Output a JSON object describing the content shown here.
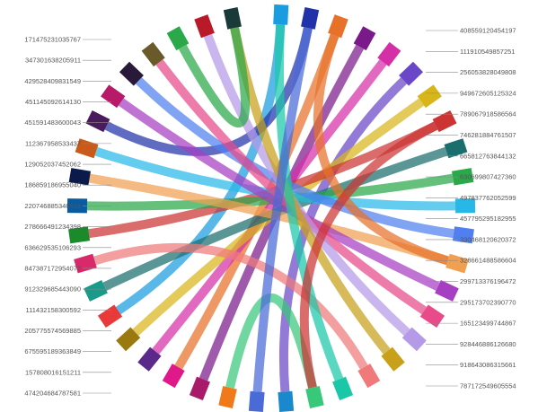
{
  "chart_data": {
    "type": "chord",
    "title": "",
    "left_labels": [
      "171475231035767",
      "347301638205911",
      "429528409831549",
      "451145092614130",
      "451591483600043",
      "112367958533437⁠⁠⁠",
      "129052037452062⁠⁠⁠",
      "186859186955040",
      "220746885346628⁠⁠⁠",
      "278666491234398⁠⁠⁠",
      "636629535106293⁠⁠⁠",
      "847387172954072⁠⁠⁠",
      "912329685443090⁠⁠⁠",
      "111432158300592⁠⁠⁠",
      "205775574569885⁠⁠⁠",
      "675595189363849⁠⁠⁠",
      "157808016151211⁠⁠⁠",
      "474204684787581⁠⁠⁠"
    ],
    "right_labels": [
      "408559120454197⁠⁠⁠",
      "111910549857251⁠⁠⁠",
      "256053828049808⁠⁠⁠",
      "949672605125324⁠⁠⁠",
      "789067918586564⁠⁠⁠",
      "746281884761507⁠⁠⁠",
      "665812763844132⁠⁠⁠",
      "630699807427360⁠⁠⁠",
      "497837762052599⁠⁠⁠",
      "457795295182955⁠⁠⁠",
      "330468120620372⁠⁠⁠",
      "328661488586604⁠⁠⁠",
      "299713376196472⁠⁠⁠",
      "295173702390770⁠⁠⁠",
      "165123499744867⁠⁠⁠",
      "928446886126680⁠⁠⁠",
      "918643086315661⁠⁠⁠",
      "787172549605554⁠⁠⁠"
    ],
    "nodes": [
      {
        "id": "n0",
        "color": "#1a9de0"
      },
      {
        "id": "n1",
        "color": "#2233aa"
      },
      {
        "id": "n2",
        "color": "#e8712a"
      },
      {
        "id": "n3",
        "color": "#7a1a8a"
      },
      {
        "id": "n4",
        "color": "#d52fa8"
      },
      {
        "id": "n5",
        "color": "#6a47c8"
      },
      {
        "id": "n6",
        "color": "#d8b61a"
      },
      {
        "id": "n7",
        "color": "#cc3333"
      },
      {
        "id": "n8",
        "color": "#1a6e6e"
      },
      {
        "id": "n9",
        "color": "#2aa84a"
      },
      {
        "id": "n10",
        "color": "#28b8e8"
      },
      {
        "id": "n11",
        "color": "#4f7ff0"
      },
      {
        "id": "n12",
        "color": "#f0a050"
      },
      {
        "id": "n13",
        "color": "#a63fc2"
      },
      {
        "id": "n14",
        "color": "#e84a8a"
      },
      {
        "id": "n15",
        "color": "#b59ae8"
      },
      {
        "id": "n16",
        "color": "#c8a01a"
      },
      {
        "id": "n17",
        "color": "#f07a7a"
      },
      {
        "id": "n18",
        "color": "#1ac8a8"
      },
      {
        "id": "n19",
        "color": "#38c87a"
      },
      {
        "id": "n20",
        "color": "#1a88cc"
      },
      {
        "id": "n21",
        "color": "#4a6ad8"
      },
      {
        "id": "n22",
        "color": "#f07a1a"
      },
      {
        "id": "n23",
        "color": "#a81a6a"
      },
      {
        "id": "n24",
        "color": "#e0188a"
      },
      {
        "id": "n25",
        "color": "#5a2a8a"
      },
      {
        "id": "n26",
        "color": "#9a7a10"
      },
      {
        "id": "n27",
        "color": "#e83a3a"
      },
      {
        "id": "n28",
        "color": "#1a9a8a"
      },
      {
        "id": "n29",
        "color": "#d82a6a"
      },
      {
        "id": "n30",
        "color": "#1a8a2a"
      },
      {
        "id": "n31",
        "color": "#0a5aa0"
      },
      {
        "id": "n32",
        "color": "#0a1a4a"
      },
      {
        "id": "n33",
        "color": "#c85a1a"
      },
      {
        "id": "n34",
        "color": "#4a1a5a"
      },
      {
        "id": "n35",
        "color": "#b81a6a"
      },
      {
        "id": "n36",
        "color": "#2a1a3a"
      },
      {
        "id": "n37",
        "color": "#6a5a2a"
      },
      {
        "id": "n38",
        "color": "#2aa84a"
      },
      {
        "id": "n39",
        "color": "#b81a2a"
      },
      {
        "id": "n40",
        "color": "#1a3a3a"
      }
    ],
    "links": [
      [
        "n0",
        "n27"
      ],
      [
        "n1",
        "n34"
      ],
      [
        "n2",
        "n24"
      ],
      [
        "n3",
        "n23"
      ],
      [
        "n4",
        "n25"
      ],
      [
        "n5",
        "n20"
      ],
      [
        "n6",
        "n26"
      ],
      [
        "n7",
        "n30"
      ],
      [
        "n8",
        "n28"
      ],
      [
        "n9",
        "n31"
      ],
      [
        "n10",
        "n33"
      ],
      [
        "n11",
        "n36"
      ],
      [
        "n12",
        "n32"
      ],
      [
        "n13",
        "n35"
      ],
      [
        "n14",
        "n37"
      ],
      [
        "n15",
        "n39"
      ],
      [
        "n16",
        "n40"
      ],
      [
        "n17",
        "n29"
      ],
      [
        "n18",
        "n0"
      ],
      [
        "n19",
        "n22"
      ],
      [
        "n21",
        "n1"
      ],
      [
        "n38",
        "n40"
      ],
      [
        "n2",
        "n12"
      ],
      [
        "n7",
        "n19"
      ]
    ]
  }
}
